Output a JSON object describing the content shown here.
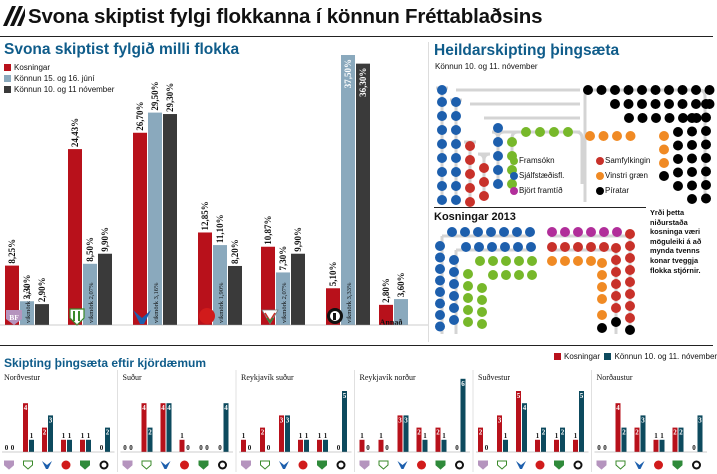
{
  "header": {
    "title": "Svona skiptist fylgi flokkanna í könnun Fréttablaðsins"
  },
  "colors": {
    "kosningar": "#b8111b",
    "june": "#8aa9bd",
    "november": "#3a3a3a",
    "accent": "#0f5c8a",
    "framsokn": "#77b82a",
    "sjalfstaedis": "#1d5fad",
    "bjort": "#b12e9a",
    "samfylking": "#c8312a",
    "vinstri": "#f08a24",
    "piratar": "#000000"
  },
  "main_chart": {
    "title": "Svona skiptist fylgið milli flokka",
    "legend": [
      "Kosningar",
      "Könnun 15. og 16. júní",
      "Könnun 10. og 11 nóvember"
    ],
    "annad_label": "Annað",
    "vikmork_prefix": "vikmörk",
    "parties": [
      "bjort-framtid",
      "framsokn",
      "sjalfstaedisflokkur",
      "samfylking",
      "vinstri-graen",
      "piratar",
      "annad"
    ]
  },
  "chart_data": [
    {
      "type": "bar",
      "title": "Svona skiptist fylgið milli flokka",
      "categories": [
        "BF",
        "Framsókn",
        "Sjálfstæðisfl.",
        "Samfylkingin",
        "Vinstri græn",
        "Píratar",
        "Annað"
      ],
      "series": [
        {
          "name": "Kosningar",
          "values": [
            8.25,
            24.43,
            26.7,
            12.85,
            10.87,
            5.1,
            2.8
          ],
          "labels": [
            "8,25%",
            "24,43%",
            "26,70%",
            "12,85%",
            "10,87%",
            "5,10%",
            "2,80%"
          ]
        },
        {
          "name": "Könnun 15. og 16. júní",
          "values": [
            3.3,
            8.5,
            29.5,
            11.1,
            7.3,
            37.5,
            3.6
          ],
          "labels": [
            "3,30%",
            "8,50%",
            "29,50%",
            "11,10%",
            "7,30%",
            "37,50%",
            "3,60%"
          ]
        },
        {
          "name": "Könnun 10. og 11 nóvember",
          "values": [
            2.9,
            9.9,
            29.3,
            8.2,
            9.9,
            36.3,
            null
          ],
          "labels": [
            "2,90%",
            "9,90%",
            "29,30%",
            "8,20%",
            "9,90%",
            "36,30%",
            ""
          ]
        }
      ],
      "annotations": [
        "1,1%",
        "2,07%",
        "3,16%",
        "1,90%",
        "2,07%",
        "3,33%"
      ]
    },
    {
      "type": "bar",
      "title": "Skipting þingsæta eftir kjördæmum",
      "legend": [
        "Kosningar",
        "Könnun 10. og 11. nóvember"
      ],
      "party_order": [
        "BF",
        "Framsókn",
        "Sjálfstæðisfl.",
        "Samfylkingin",
        "Vinstri græn",
        "Píratar"
      ],
      "districts": [
        {
          "name": "Norðvestur",
          "kosningar": [
            0,
            4,
            2,
            1,
            1,
            0
          ],
          "november": [
            0,
            1,
            3,
            1,
            1,
            2
          ]
        },
        {
          "name": "Suður",
          "kosningar": [
            0,
            4,
            4,
            1,
            0,
            0
          ],
          "november": [
            0,
            2,
            4,
            0,
            0,
            4
          ]
        },
        {
          "name": "Reykjavík suður",
          "kosningar": [
            1,
            2,
            3,
            1,
            1,
            0
          ],
          "november": [
            0,
            0,
            3,
            1,
            1,
            5
          ]
        },
        {
          "name": "Reykjavík norður",
          "kosningar": [
            1,
            1,
            3,
            2,
            2,
            0
          ],
          "november": [
            0,
            0,
            3,
            1,
            1,
            6
          ]
        },
        {
          "name": "Suðvestur",
          "kosningar": [
            2,
            3,
            5,
            1,
            1,
            1
          ],
          "november": [
            0,
            1,
            4,
            2,
            2,
            5
          ]
        },
        {
          "name": "Norðaustur",
          "kosningar": [
            0,
            4,
            2,
            1,
            2,
            0
          ],
          "november": [
            0,
            2,
            3,
            1,
            2,
            3
          ]
        }
      ]
    }
  ],
  "seat_section": {
    "title": "Heildarskipting þingsæta",
    "subtitle": "Könnun 10. og 11. nóvember",
    "legend": [
      "Framsókn",
      "Sjálfstæðisfl.",
      "Björt framtíð",
      "Samfylkingin",
      "Vinstri græn",
      "Píratar"
    ],
    "kosningar_title": "Kosningar 2013",
    "note": "Yrði þetta niðurstaða kosninga væri möguleiki á að mynda tvenns konar tveggja flokka stjórnir."
  },
  "district_section": {
    "title": "Skipting þingsæta eftir kjördæmum",
    "legend": [
      "Kosningar",
      "Könnun 10. og 11. nóvember"
    ]
  }
}
